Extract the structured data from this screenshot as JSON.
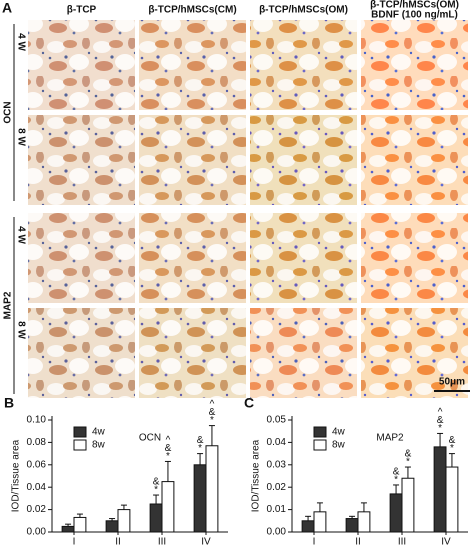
{
  "panel_a": {
    "label": "A",
    "columns": [
      [
        "β-TCP"
      ],
      [
        "β-TCP/hMSCs(CM)"
      ],
      [
        "β-TCP/hMSCs(OM)"
      ],
      [
        "β-TCP/hMSCs(OM)",
        "BDNF (100 ng/mL)"
      ]
    ],
    "groups": [
      {
        "label": "OCN",
        "rows": [
          "4 W",
          "8 W"
        ]
      },
      {
        "label": "MAP2",
        "rows": [
          "4 W",
          "8 W"
        ]
      }
    ],
    "scale_bar": "50μm"
  },
  "chart_data": [
    {
      "type": "bar",
      "panel": "B",
      "title": "OCN",
      "y_label": "IOD/Tissue area",
      "categories": [
        "I",
        "II",
        "III",
        "IV"
      ],
      "series": [
        {
          "name": "4w",
          "color": "#333333",
          "values": [
            0.005,
            0.01,
            0.025,
            0.06
          ],
          "errors": [
            0.002,
            0.002,
            0.008,
            0.01
          ],
          "annotations": [
            [],
            [],
            [
              "&",
              "*"
            ],
            [
              "&",
              "*"
            ]
          ]
        },
        {
          "name": "8w",
          "color": "#ffffff",
          "values": [
            0.013,
            0.02,
            0.045,
            0.077
          ],
          "errors": [
            0.003,
            0.004,
            0.018,
            0.018
          ],
          "annotations": [
            [],
            [],
            [
              "^",
              "&",
              "*"
            ],
            [
              "^",
              "&",
              "*"
            ]
          ]
        }
      ],
      "ylim": [
        0,
        0.1
      ],
      "yticks": [
        {
          "value": 0,
          "label": "0.00"
        },
        {
          "value": 0.02,
          "label": "0.02"
        },
        {
          "value": 0.04,
          "label": "0.04"
        },
        {
          "value": 0.06,
          "label": "0.06"
        },
        {
          "value": 0.08,
          "label": "0.08"
        },
        {
          "value": 0.1,
          "label": "0.10"
        }
      ]
    },
    {
      "type": "bar",
      "panel": "C",
      "title": "MAP2",
      "y_label": "IOD/Tissue area",
      "categories": [
        "I",
        "II",
        "III",
        "IV"
      ],
      "series": [
        {
          "name": "4w",
          "color": "#333333",
          "values": [
            0.005,
            0.006,
            0.017,
            0.038
          ],
          "errors": [
            0.002,
            0.001,
            0.004,
            0.006
          ],
          "annotations": [
            [],
            [],
            [
              "&",
              "*"
            ],
            [
              "^",
              "&",
              "*"
            ]
          ]
        },
        {
          "name": "8w",
          "color": "#ffffff",
          "values": [
            0.009,
            0.009,
            0.024,
            0.029
          ],
          "errors": [
            0.004,
            0.004,
            0.005,
            0.006
          ],
          "annotations": [
            [],
            [],
            [
              "&",
              "*"
            ],
            [
              "&",
              "*"
            ]
          ]
        }
      ],
      "ylim": [
        0,
        0.05
      ],
      "yticks": [
        {
          "value": 0,
          "label": "0.00"
        },
        {
          "value": 0.01,
          "label": "0.01"
        },
        {
          "value": 0.02,
          "label": "0.02"
        },
        {
          "value": 0.03,
          "label": "0.03"
        },
        {
          "value": 0.04,
          "label": "0.04"
        },
        {
          "value": 0.05,
          "label": "0.05"
        }
      ]
    }
  ]
}
